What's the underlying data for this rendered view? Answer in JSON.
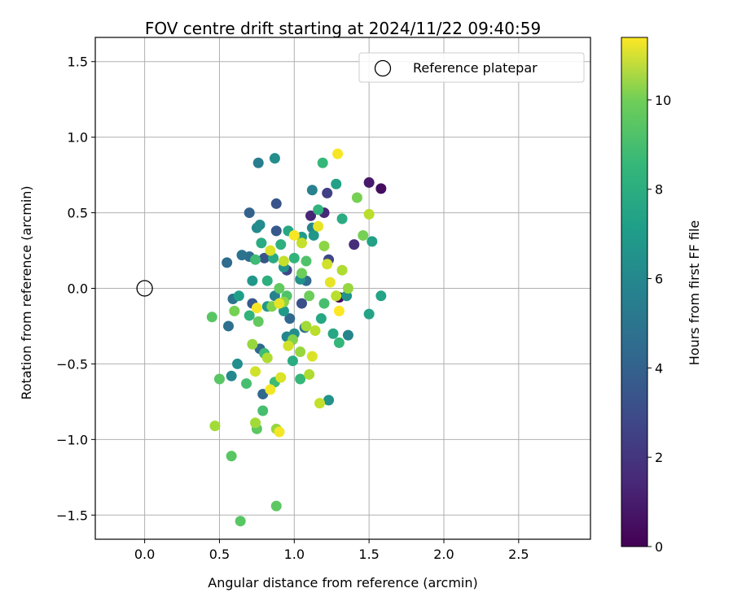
{
  "chart_data": {
    "type": "scatter",
    "title": "FOV centre drift starting at 2024/11/22 09:40:59",
    "xlabel": "Angular distance from reference (arcmin)",
    "ylabel": "Rotation from reference (arcmin)",
    "xlim": [
      -0.33,
      2.98
    ],
    "ylim": [
      -1.66,
      1.66
    ],
    "xticks": [
      0.0,
      0.5,
      1.0,
      1.5,
      2.0,
      2.5
    ],
    "xtick_labels": [
      "0.0",
      "0.5",
      "1.0",
      "1.5",
      "2.0",
      "2.5"
    ],
    "yticks": [
      -1.5,
      -1.0,
      -0.5,
      0.0,
      0.5,
      1.0,
      1.5
    ],
    "ytick_labels": [
      "−1.5",
      "−1.0",
      "−0.5",
      "0.0",
      "0.5",
      "1.0",
      "1.5"
    ],
    "grid": true,
    "legend": {
      "placement": "top-right",
      "entries": [
        "Reference platepar"
      ]
    },
    "reference_point": {
      "x": 0.0,
      "y": 0.0
    },
    "colorbar": {
      "label": "Hours from first FF file",
      "range": [
        0,
        11.4
      ],
      "ticks": [
        0,
        2,
        4,
        6,
        8,
        10
      ],
      "tick_labels": [
        "0",
        "2",
        "4",
        "6",
        "8",
        "10"
      ],
      "colormap": "viridis"
    },
    "points": [
      {
        "x": 1.3,
        "y": -0.06,
        "c": 0.3
      },
      {
        "x": 1.58,
        "y": 0.66,
        "c": 0.4
      },
      {
        "x": 1.5,
        "y": 0.7,
        "c": 0.8
      },
      {
        "x": 1.11,
        "y": 0.48,
        "c": 1.2
      },
      {
        "x": 1.2,
        "y": 0.5,
        "c": 1.3
      },
      {
        "x": 1.4,
        "y": 0.29,
        "c": 1.5
      },
      {
        "x": 1.22,
        "y": 0.63,
        "c": 2.2
      },
      {
        "x": 0.95,
        "y": 0.12,
        "c": 2.5
      },
      {
        "x": 1.23,
        "y": 0.19,
        "c": 2.5
      },
      {
        "x": 1.05,
        "y": -0.1,
        "c": 2.8
      },
      {
        "x": 0.88,
        "y": 0.56,
        "c": 3.0
      },
      {
        "x": 0.8,
        "y": 0.2,
        "c": 3.0
      },
      {
        "x": 0.72,
        "y": -0.1,
        "c": 3.2
      },
      {
        "x": 0.88,
        "y": 0.38,
        "c": 3.2
      },
      {
        "x": 0.7,
        "y": 0.5,
        "c": 3.6
      },
      {
        "x": 0.79,
        "y": -0.7,
        "c": 3.8
      },
      {
        "x": 0.97,
        "y": -0.2,
        "c": 3.8
      },
      {
        "x": 0.77,
        "y": -0.4,
        "c": 3.8
      },
      {
        "x": 0.55,
        "y": 0.17,
        "c": 4.0
      },
      {
        "x": 0.7,
        "y": 0.21,
        "c": 4.0
      },
      {
        "x": 1.08,
        "y": 0.05,
        "c": 4.0
      },
      {
        "x": 1.07,
        "y": -0.26,
        "c": 4.2
      },
      {
        "x": 0.56,
        "y": -0.25,
        "c": 4.2
      },
      {
        "x": 0.59,
        "y": -0.07,
        "c": 4.4
      },
      {
        "x": 0.65,
        "y": 0.22,
        "c": 4.4
      },
      {
        "x": 0.76,
        "y": 0.83,
        "c": 4.8
      },
      {
        "x": 1.12,
        "y": 0.65,
        "c": 5.0
      },
      {
        "x": 0.87,
        "y": -0.05,
        "c": 5.0
      },
      {
        "x": 1.12,
        "y": 0.4,
        "c": 5.2
      },
      {
        "x": 0.95,
        "y": -0.32,
        "c": 5.2
      },
      {
        "x": 1.36,
        "y": -0.31,
        "c": 5.2
      },
      {
        "x": 0.75,
        "y": 0.4,
        "c": 5.4
      },
      {
        "x": 0.58,
        "y": -0.58,
        "c": 5.4
      },
      {
        "x": 0.77,
        "y": 0.42,
        "c": 5.5
      },
      {
        "x": 1.0,
        "y": -0.3,
        "c": 5.6
      },
      {
        "x": 0.62,
        "y": -0.5,
        "c": 5.6
      },
      {
        "x": 0.87,
        "y": 0.86,
        "c": 5.6
      },
      {
        "x": 1.04,
        "y": 0.06,
        "c": 5.8
      },
      {
        "x": 1.23,
        "y": -0.74,
        "c": 5.8
      },
      {
        "x": 0.93,
        "y": 0.14,
        "c": 5.8
      },
      {
        "x": 1.35,
        "y": -0.05,
        "c": 5.8
      },
      {
        "x": 0.82,
        "y": -0.12,
        "c": 6.0
      },
      {
        "x": 1.13,
        "y": 0.35,
        "c": 6.0
      },
      {
        "x": 0.72,
        "y": 0.05,
        "c": 6.0
      },
      {
        "x": 1.05,
        "y": 0.34,
        "c": 6.2
      },
      {
        "x": 0.93,
        "y": -0.15,
        "c": 6.2
      },
      {
        "x": 0.63,
        "y": -0.05,
        "c": 6.4
      },
      {
        "x": 1.28,
        "y": 0.69,
        "c": 6.5
      },
      {
        "x": 1.52,
        "y": 0.31,
        "c": 6.5
      },
      {
        "x": 1.5,
        "y": -0.17,
        "c": 6.6
      },
      {
        "x": 1.58,
        "y": -0.05,
        "c": 6.6
      },
      {
        "x": 1.18,
        "y": -0.2,
        "c": 6.8
      },
      {
        "x": 1.26,
        "y": -0.3,
        "c": 6.8
      },
      {
        "x": 0.96,
        "y": 0.38,
        "c": 6.8
      },
      {
        "x": 0.86,
        "y": 0.2,
        "c": 6.9
      },
      {
        "x": 0.99,
        "y": -0.48,
        "c": 7.0
      },
      {
        "x": 0.78,
        "y": 0.3,
        "c": 7.0
      },
      {
        "x": 1.32,
        "y": 0.46,
        "c": 7.0
      },
      {
        "x": 0.91,
        "y": 0.29,
        "c": 7.2
      },
      {
        "x": 0.82,
        "y": 0.05,
        "c": 7.2
      },
      {
        "x": 1.0,
        "y": 0.2,
        "c": 7.4
      },
      {
        "x": 1.16,
        "y": 0.52,
        "c": 7.4
      },
      {
        "x": 0.7,
        "y": -0.18,
        "c": 7.4
      },
      {
        "x": 1.04,
        "y": -0.6,
        "c": 7.6
      },
      {
        "x": 1.19,
        "y": 0.83,
        "c": 7.6
      },
      {
        "x": 1.3,
        "y": -0.36,
        "c": 7.6
      },
      {
        "x": 0.8,
        "y": -0.43,
        "c": 7.8
      },
      {
        "x": 0.74,
        "y": 0.19,
        "c": 7.8
      },
      {
        "x": 0.87,
        "y": -0.62,
        "c": 7.8
      },
      {
        "x": 0.68,
        "y": -0.63,
        "c": 8.0
      },
      {
        "x": 0.79,
        "y": -0.81,
        "c": 8.0
      },
      {
        "x": 1.2,
        "y": -0.1,
        "c": 8.0
      },
      {
        "x": 1.08,
        "y": 0.18,
        "c": 8.2
      },
      {
        "x": 0.95,
        "y": -0.05,
        "c": 8.2
      },
      {
        "x": 0.45,
        "y": -0.19,
        "c": 8.4
      },
      {
        "x": 0.5,
        "y": -0.6,
        "c": 8.4
      },
      {
        "x": 0.64,
        "y": -1.54,
        "c": 8.4
      },
      {
        "x": 0.58,
        "y": -1.11,
        "c": 8.4
      },
      {
        "x": 0.88,
        "y": -1.44,
        "c": 8.5
      },
      {
        "x": 0.75,
        "y": -0.93,
        "c": 8.5
      },
      {
        "x": 0.76,
        "y": -0.22,
        "c": 8.6
      },
      {
        "x": 0.9,
        "y": 0.0,
        "c": 8.6
      },
      {
        "x": 1.1,
        "y": -0.05,
        "c": 8.8
      },
      {
        "x": 1.05,
        "y": 0.1,
        "c": 8.8
      },
      {
        "x": 1.42,
        "y": 0.6,
        "c": 9.0
      },
      {
        "x": 0.6,
        "y": -0.15,
        "c": 9.0
      },
      {
        "x": 1.46,
        "y": 0.35,
        "c": 9.0
      },
      {
        "x": 0.85,
        "y": -0.12,
        "c": 9.2
      },
      {
        "x": 0.99,
        "y": -0.34,
        "c": 9.2
      },
      {
        "x": 1.2,
        "y": 0.28,
        "c": 9.4
      },
      {
        "x": 0.93,
        "y": -0.09,
        "c": 9.4
      },
      {
        "x": 1.04,
        "y": -0.42,
        "c": 9.6
      },
      {
        "x": 0.72,
        "y": -0.37,
        "c": 9.6
      },
      {
        "x": 1.36,
        "y": 0.0,
        "c": 9.6
      },
      {
        "x": 0.88,
        "y": -0.93,
        "c": 9.6
      },
      {
        "x": 0.47,
        "y": -0.91,
        "c": 9.8
      },
      {
        "x": 0.74,
        "y": -0.89,
        "c": 9.8
      },
      {
        "x": 1.08,
        "y": -0.25,
        "c": 9.8
      },
      {
        "x": 1.1,
        "y": -0.57,
        "c": 10.0
      },
      {
        "x": 1.32,
        "y": 0.12,
        "c": 10.0
      },
      {
        "x": 0.82,
        "y": -0.46,
        "c": 10.0
      },
      {
        "x": 1.14,
        "y": -0.28,
        "c": 10.2
      },
      {
        "x": 1.5,
        "y": 0.49,
        "c": 10.2
      },
      {
        "x": 1.28,
        "y": -0.05,
        "c": 10.2
      },
      {
        "x": 0.93,
        "y": 0.18,
        "c": 10.4
      },
      {
        "x": 1.17,
        "y": -0.76,
        "c": 10.4
      },
      {
        "x": 1.05,
        "y": 0.3,
        "c": 10.4
      },
      {
        "x": 0.74,
        "y": -0.55,
        "c": 10.6
      },
      {
        "x": 0.96,
        "y": -0.38,
        "c": 10.6
      },
      {
        "x": 1.22,
        "y": 0.16,
        "c": 10.6
      },
      {
        "x": 0.84,
        "y": 0.25,
        "c": 10.8
      },
      {
        "x": 0.91,
        "y": -0.59,
        "c": 10.8
      },
      {
        "x": 1.12,
        "y": -0.45,
        "c": 10.8
      },
      {
        "x": 1.16,
        "y": 0.41,
        "c": 11.0
      },
      {
        "x": 0.9,
        "y": -0.1,
        "c": 11.0
      },
      {
        "x": 1.24,
        "y": 0.04,
        "c": 11.0
      },
      {
        "x": 0.84,
        "y": -0.67,
        "c": 11.2
      },
      {
        "x": 0.9,
        "y": -0.95,
        "c": 11.2
      },
      {
        "x": 1.29,
        "y": 0.89,
        "c": 11.3
      },
      {
        "x": 1.0,
        "y": 0.35,
        "c": 11.3
      },
      {
        "x": 0.75,
        "y": -0.13,
        "c": 11.3
      },
      {
        "x": 1.3,
        "y": -0.15,
        "c": 11.4
      }
    ]
  }
}
